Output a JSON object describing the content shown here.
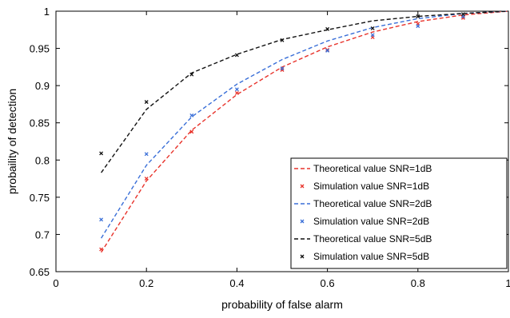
{
  "chart_data": {
    "type": "line",
    "title": "",
    "xlabel": "probability of false alarm",
    "ylabel": "probaility of detection",
    "xlim": [
      0,
      1
    ],
    "ylim": [
      0.65,
      1
    ],
    "xticks": [
      0,
      0.2,
      0.4,
      0.6,
      0.8,
      1
    ],
    "xtick_labels": [
      "0",
      "0.2",
      "0.4",
      "0.6",
      "0.8",
      "1"
    ],
    "yticks": [
      0.65,
      0.7,
      0.75,
      0.8,
      0.85,
      0.9,
      0.95,
      1
    ],
    "ytick_labels": [
      "0.65",
      "0.7",
      "0.75",
      "0.8",
      "0.85",
      "0.9",
      "0.95",
      "1"
    ],
    "grid": false,
    "legend_position": "bottom-right",
    "series": [
      {
        "name": "Theoretical value SNR=1dB",
        "kind": "line",
        "style": "dashed",
        "color": "#e8332b",
        "x": [
          0.1,
          0.2,
          0.3,
          0.4,
          0.5,
          0.6,
          0.7,
          0.8,
          0.9,
          1.0
        ],
        "y": [
          0.676,
          0.772,
          0.84,
          0.888,
          0.925,
          0.952,
          0.972,
          0.986,
          0.995,
          1.0
        ]
      },
      {
        "name": "Simulation value SNR=1dB",
        "kind": "scatter",
        "color": "#e8332b",
        "x": [
          0.1,
          0.2,
          0.3,
          0.4,
          0.5,
          0.6,
          0.7,
          0.8,
          0.9
        ],
        "y": [
          0.68,
          0.775,
          0.838,
          0.89,
          0.921,
          0.948,
          0.965,
          0.983,
          0.991
        ]
      },
      {
        "name": "Theoretical value SNR=2dB",
        "kind": "line",
        "style": "dashed",
        "color": "#3a6fd8",
        "x": [
          0.1,
          0.2,
          0.3,
          0.4,
          0.5,
          0.6,
          0.7,
          0.8,
          0.9,
          1.0
        ],
        "y": [
          0.695,
          0.793,
          0.858,
          0.902,
          0.935,
          0.96,
          0.978,
          0.99,
          0.997,
          1.0
        ]
      },
      {
        "name": "Simulation value SNR=2dB",
        "kind": "scatter",
        "color": "#3a6fd8",
        "x": [
          0.1,
          0.2,
          0.3,
          0.4,
          0.5,
          0.6,
          0.7,
          0.8,
          0.9
        ],
        "y": [
          0.72,
          0.808,
          0.86,
          0.895,
          0.923,
          0.947,
          0.968,
          0.98,
          0.993
        ]
      },
      {
        "name": "Theoretical value SNR=5dB",
        "kind": "line",
        "style": "dashed",
        "color": "#111111",
        "x": [
          0.1,
          0.2,
          0.3,
          0.4,
          0.5,
          0.6,
          0.7,
          0.8,
          0.9,
          1.0
        ],
        "y": [
          0.783,
          0.868,
          0.917,
          0.942,
          0.962,
          0.975,
          0.987,
          0.993,
          0.997,
          1.0
        ]
      },
      {
        "name": "Simulation value SNR=5dB",
        "kind": "scatter",
        "color": "#111111",
        "x": [
          0.1,
          0.2,
          0.3,
          0.4,
          0.5,
          0.6,
          0.7,
          0.8,
          0.9
        ],
        "y": [
          0.809,
          0.878,
          0.915,
          0.941,
          0.961,
          0.976,
          0.977,
          0.993,
          0.996
        ]
      }
    ]
  }
}
